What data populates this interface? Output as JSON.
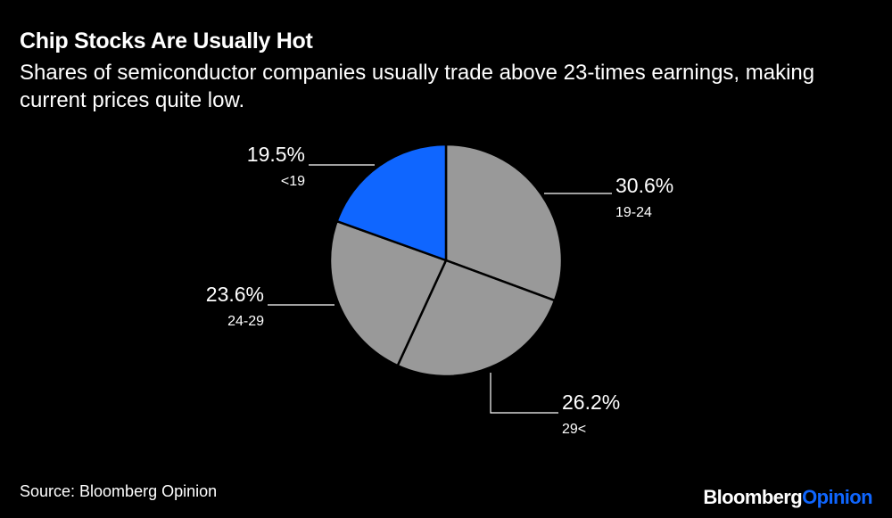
{
  "header": {
    "title": "Chip Stocks Are Usually Hot",
    "subtitle": "Shares of semiconductor companies usually trade above 23-times earnings, making current prices quite low."
  },
  "footer": {
    "source": "Source: Bloomberg Opinion",
    "brand_part1": "Bloomberg",
    "brand_part2": "Opinion"
  },
  "colors": {
    "highlight": "#0f66ff",
    "slice": "#999999",
    "background": "#000000"
  },
  "chart_data": {
    "type": "pie",
    "title": "Chip Stocks Are Usually Hot",
    "categories": [
      "19-24",
      "29<",
      "24-29",
      "<19"
    ],
    "values": [
      30.6,
      26.2,
      23.6,
      19.5
    ],
    "value_labels": [
      "30.6%",
      "26.2%",
      "23.6%",
      "19.5%"
    ],
    "slice_colors": [
      "#999999",
      "#999999",
      "#999999",
      "#0f66ff"
    ],
    "start": "12 o'clock",
    "direction": "clockwise"
  }
}
